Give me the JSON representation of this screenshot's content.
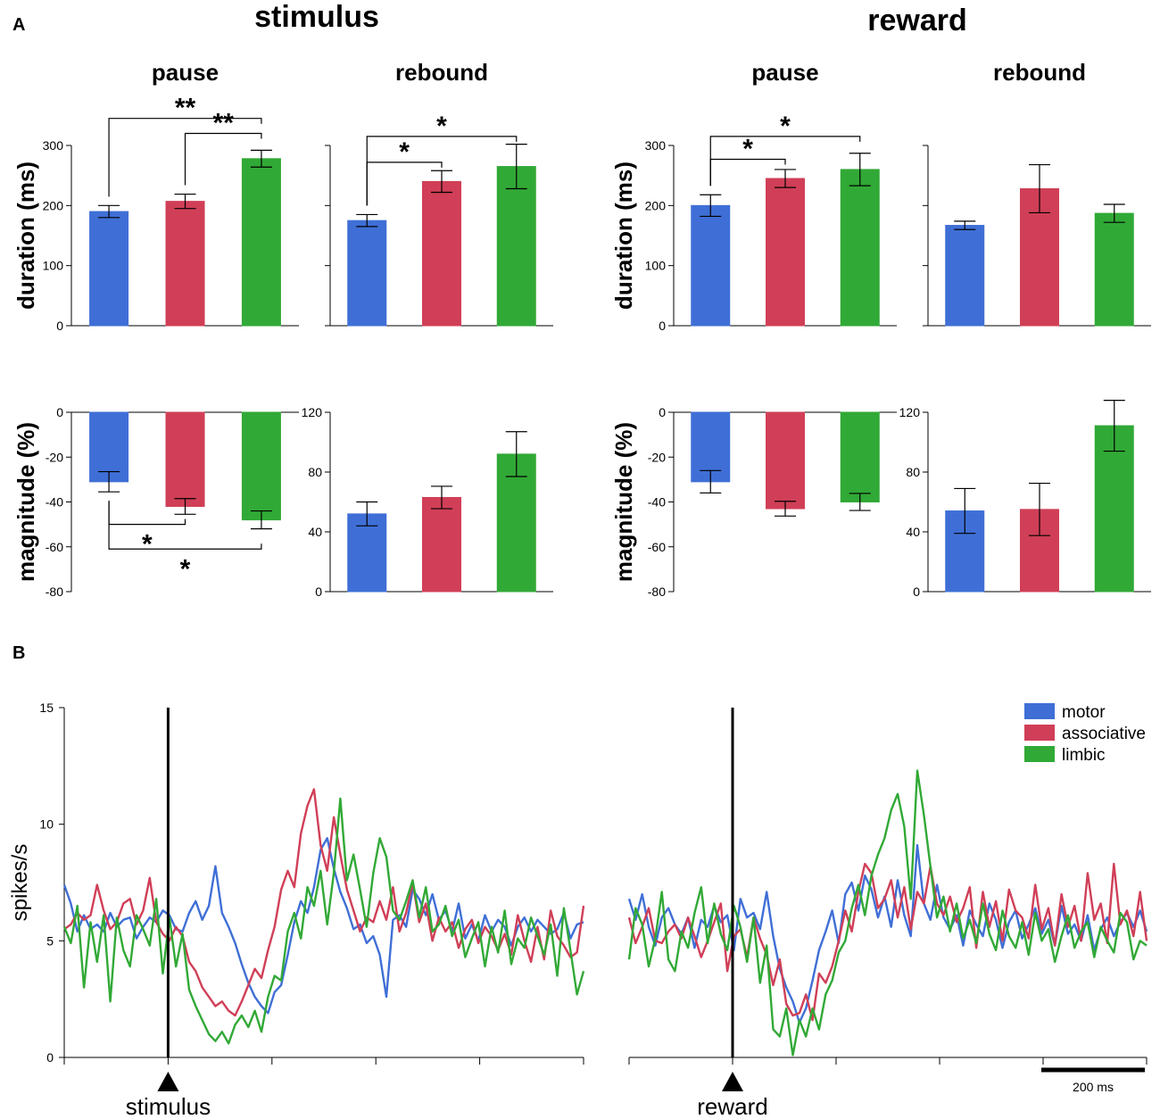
{
  "panel_labels": {
    "a": "A",
    "b": "B"
  },
  "section_titles": {
    "stimulus": "stimulus",
    "reward": "reward"
  },
  "colors": {
    "motor": "#3f6fd6",
    "associative": "#d03f57",
    "limbic": "#31a936",
    "axis": "#000000"
  },
  "chart_data": [
    {
      "id": "stim-pause-duration",
      "type": "bar",
      "title": "pause",
      "ylabel": "duration (ms)",
      "categories": [
        "motor",
        "associative",
        "limbic"
      ],
      "values": [
        190,
        207,
        278
      ],
      "errors": [
        10,
        12,
        14
      ],
      "ylim": [
        0,
        300
      ],
      "yticks": [
        0,
        100,
        200,
        300
      ],
      "ytick_labels": [
        "0",
        "100",
        "200",
        "300"
      ],
      "significance": [
        {
          "from": 0,
          "to": 2,
          "label": "**",
          "y": 345
        },
        {
          "from": 1,
          "to": 2,
          "label": "**",
          "y": 320
        }
      ]
    },
    {
      "id": "stim-rebound-duration",
      "type": "bar",
      "title": "rebound",
      "ylabel": "",
      "categories": [
        "motor",
        "associative",
        "limbic"
      ],
      "values": [
        175,
        240,
        265
      ],
      "errors": [
        10,
        18,
        37
      ],
      "ylim": [
        0,
        300
      ],
      "yticks": [
        0,
        100,
        200,
        300
      ],
      "ytick_labels": [],
      "significance": [
        {
          "from": 0,
          "to": 2,
          "label": "*",
          "y": 315
        },
        {
          "from": 0,
          "to": 1,
          "label": "*",
          "y": 272
        }
      ]
    },
    {
      "id": "reward-pause-duration",
      "type": "bar",
      "title": "pause",
      "ylabel": "duration (ms)",
      "categories": [
        "motor",
        "associative",
        "limbic"
      ],
      "values": [
        200,
        245,
        260
      ],
      "errors": [
        18,
        15,
        27
      ],
      "ylim": [
        0,
        300
      ],
      "yticks": [
        0,
        100,
        200,
        300
      ],
      "ytick_labels": [
        "0",
        "100",
        "200",
        "300"
      ],
      "significance": [
        {
          "from": 0,
          "to": 2,
          "label": "*",
          "y": 315
        },
        {
          "from": 0,
          "to": 1,
          "label": "*",
          "y": 277
        }
      ]
    },
    {
      "id": "reward-rebound-duration",
      "type": "bar",
      "title": "rebound",
      "ylabel": "",
      "categories": [
        "motor",
        "associative",
        "limbic"
      ],
      "values": [
        167,
        228,
        187
      ],
      "errors": [
        7,
        40,
        15
      ],
      "ylim": [
        0,
        300
      ],
      "yticks": [
        0,
        100,
        200,
        300
      ],
      "ytick_labels": [],
      "significance": []
    },
    {
      "id": "stim-pause-magnitude",
      "type": "bar",
      "title": "",
      "ylabel": "magnitude (%)",
      "categories": [
        "motor",
        "associative",
        "limbic"
      ],
      "values": [
        -31,
        -42,
        -48
      ],
      "errors": [
        4.5,
        3.5,
        4
      ],
      "ylim": [
        -80,
        0
      ],
      "yticks": [
        0,
        -20,
        -40,
        -60,
        -80
      ],
      "ytick_labels": [
        "0",
        "-20",
        "-40",
        "-60",
        "-80"
      ],
      "significance": [
        {
          "from": 0,
          "to": 1,
          "label": "*",
          "y": -50,
          "below": true
        },
        {
          "from": 0,
          "to": 2,
          "label": "*",
          "y": -61,
          "below": true
        }
      ]
    },
    {
      "id": "stim-rebound-magnitude",
      "type": "bar",
      "title": "",
      "ylabel": "",
      "categories": [
        "motor",
        "associative",
        "limbic"
      ],
      "values": [
        52,
        63,
        92
      ],
      "errors": [
        8,
        7.5,
        15
      ],
      "ylim": [
        0,
        120
      ],
      "yticks": [
        0,
        40,
        80,
        120
      ],
      "ytick_labels": [
        "0",
        "40",
        "80",
        "120"
      ],
      "significance": []
    },
    {
      "id": "reward-pause-magnitude",
      "type": "bar",
      "title": "",
      "ylabel": "magnitude (%)",
      "categories": [
        "motor",
        "associative",
        "limbic"
      ],
      "values": [
        -31,
        -43,
        -40
      ],
      "errors": [
        5,
        3.3,
        3.8
      ],
      "ylim": [
        -80,
        0
      ],
      "yticks": [
        0,
        -20,
        -40,
        -60,
        -80
      ],
      "ytick_labels": [
        "0",
        "-20",
        "-40",
        "-60",
        "-80"
      ],
      "significance": []
    },
    {
      "id": "reward-rebound-magnitude",
      "type": "bar",
      "title": "",
      "ylabel": "",
      "categories": [
        "motor",
        "associative",
        "limbic"
      ],
      "values": [
        54,
        55,
        111
      ],
      "errors": [
        15,
        17.5,
        17
      ],
      "ylim": [
        0,
        120
      ],
      "yticks": [
        0,
        40,
        80,
        120
      ],
      "ytick_labels": [
        "0",
        "40",
        "80",
        "120"
      ],
      "significance": []
    },
    {
      "id": "psth-stimulus",
      "type": "line",
      "ylabel": "spikes/s",
      "ylim": [
        0,
        15
      ],
      "yticks": [
        0,
        5,
        10,
        15
      ],
      "ytick_labels": [
        "0",
        "5",
        "10",
        "15"
      ],
      "xlim": [
        -200,
        800
      ],
      "event_time": 0,
      "event_label": "stimulus",
      "series": [
        {
          "name": "motor",
          "values": [
            7.4,
            6.6,
            5.4,
            6.1,
            5.5,
            5.7,
            5.4,
            6.2,
            5.6,
            5.9,
            6.0,
            5.1,
            5.6,
            6.0,
            5.8,
            6.3,
            6.1,
            5.5,
            5.4,
            6.2,
            6.7,
            5.9,
            6.5,
            8.2,
            6.2,
            5.6,
            4.9,
            4.0,
            3.2,
            2.6,
            2.2,
            1.9,
            2.8,
            3.1,
            4.4,
            5.8,
            6.7,
            6.2,
            7.3,
            8.9,
            9.4,
            8.1,
            7.1,
            6.4,
            5.5,
            5.7,
            4.9,
            5.2,
            4.4,
            2.6,
            5.9,
            6.1,
            5.6,
            7.2,
            6.8,
            6.1,
            7.0,
            5.9,
            6.3,
            5.4,
            6.6,
            5.1,
            5.7,
            5.0,
            6.1,
            5.4,
            5.9,
            5.6,
            4.8,
            5.6,
            6.0,
            5.4,
            5.9,
            5.6,
            5.3,
            5.5,
            6.2,
            5.1,
            5.7,
            5.8
          ]
        },
        {
          "name": "associative",
          "values": [
            5.5,
            5.7,
            6.2,
            5.9,
            6.1,
            7.4,
            6.3,
            5.5,
            5.8,
            6.6,
            6.8,
            5.7,
            6.3,
            7.7,
            5.8,
            5.3,
            5.0,
            5.6,
            5.2,
            4.1,
            3.7,
            3.0,
            2.6,
            2.2,
            2.4,
            2.0,
            1.8,
            2.4,
            3.1,
            3.8,
            3.4,
            4.6,
            5.6,
            7.2,
            8.0,
            7.3,
            9.6,
            10.8,
            11.5,
            9.1,
            8.0,
            10.3,
            8.7,
            7.2,
            6.3,
            5.4,
            6.0,
            5.8,
            6.7,
            5.9,
            7.3,
            5.4,
            6.2,
            7.5,
            5.8,
            6.6,
            5.0,
            6.0,
            5.4,
            5.8,
            4.7,
            5.5,
            5.9,
            4.9,
            5.6,
            5.2,
            4.6,
            5.3,
            4.4,
            6.1,
            5.0,
            4.1,
            5.6,
            4.2,
            6.3,
            5.2,
            4.8,
            4.3,
            4.5,
            6.5
          ]
        },
        {
          "name": "limbic",
          "values": [
            5.6,
            4.9,
            6.5,
            3.0,
            5.8,
            4.1,
            6.1,
            2.4,
            6.0,
            4.6,
            3.9,
            6.1,
            5.5,
            4.8,
            6.8,
            3.6,
            6.0,
            3.9,
            5.3,
            2.9,
            2.2,
            1.6,
            1.0,
            0.7,
            1.1,
            0.6,
            1.4,
            1.8,
            1.3,
            2.0,
            1.1,
            2.6,
            3.5,
            3.3,
            5.4,
            6.2,
            5.1,
            7.3,
            6.5,
            8.0,
            5.7,
            7.9,
            11.1,
            7.6,
            8.7,
            7.2,
            5.6,
            7.9,
            9.4,
            8.6,
            6.3,
            5.9,
            6.7,
            7.6,
            6.0,
            7.3,
            5.4,
            5.7,
            6.5,
            5.2,
            5.9,
            4.3,
            5.1,
            5.8,
            3.9,
            5.6,
            4.5,
            6.3,
            4.0,
            5.1,
            4.7,
            6.0,
            5.2,
            4.4,
            5.7,
            3.5,
            6.4,
            4.6,
            2.7,
            3.7
          ]
        }
      ]
    },
    {
      "id": "psth-reward",
      "type": "line",
      "ylabel": "",
      "ylim": [
        0,
        15
      ],
      "yticks": [
        0,
        5,
        10,
        15
      ],
      "ytick_labels": [],
      "xlim": [
        -200,
        800
      ],
      "event_time": 0,
      "event_label": "reward",
      "scalebar_label": "200 ms",
      "scalebar_ms": 200,
      "series": [
        {
          "name": "motor",
          "values": [
            6.8,
            5.9,
            7.0,
            5.6,
            4.8,
            6.0,
            6.4,
            5.7,
            5.3,
            6.0,
            4.7,
            5.9,
            5.6,
            6.5,
            5.8,
            6.1,
            4.6,
            6.8,
            6.0,
            6.2,
            5.5,
            7.1,
            5.2,
            3.8,
            3.0,
            2.4,
            1.5,
            2.1,
            3.3,
            4.6,
            5.4,
            6.3,
            4.9,
            7.0,
            7.5,
            6.3,
            7.8,
            7.2,
            6.0,
            6.9,
            5.6,
            7.6,
            6.1,
            5.2,
            9.1,
            6.6,
            5.9,
            7.4,
            6.0,
            5.5,
            6.1,
            4.8,
            6.3,
            5.7,
            5.2,
            6.6,
            5.9,
            4.7,
            5.8,
            6.3,
            5.1,
            5.7,
            6.4,
            5.3,
            5.9,
            4.8,
            6.5,
            5.3,
            5.7,
            5.0,
            6.1,
            4.6,
            5.5,
            6.0,
            5.2,
            5.8,
            6.2,
            5.6,
            6.3,
            5.4
          ]
        },
        {
          "name": "associative",
          "values": [
            6.0,
            4.9,
            5.6,
            6.4,
            5.0,
            4.9,
            5.4,
            5.7,
            5.1,
            6.0,
            5.2,
            4.3,
            5.0,
            5.8,
            6.6,
            3.7,
            5.2,
            5.5,
            4.3,
            6.0,
            5.1,
            4.4,
            3.1,
            4.2,
            2.3,
            1.8,
            1.9,
            2.7,
            1.6,
            3.6,
            3.2,
            3.9,
            5.0,
            6.3,
            5.4,
            7.1,
            8.3,
            7.9,
            6.4,
            6.8,
            7.6,
            6.0,
            7.3,
            5.5,
            7.1,
            6.6,
            8.2,
            6.6,
            6.1,
            6.9,
            5.8,
            6.4,
            7.3,
            4.7,
            7.1,
            5.6,
            6.7,
            5.0,
            7.2,
            6.3,
            6.0,
            5.1,
            7.4,
            5.5,
            6.4,
            4.8,
            7.0,
            5.6,
            6.5,
            5.0,
            7.9,
            5.9,
            6.6,
            4.9,
            8.3,
            5.7,
            6.3,
            5.2,
            7.1,
            5.0
          ]
        },
        {
          "name": "limbic",
          "values": [
            4.2,
            6.4,
            5.7,
            3.9,
            5.1,
            7.1,
            4.2,
            3.7,
            5.4,
            4.7,
            6.2,
            7.3,
            4.9,
            6.6,
            5.3,
            4.6,
            6.5,
            5.6,
            4.1,
            6.0,
            3.2,
            4.8,
            1.2,
            0.9,
            2.1,
            0.1,
            1.6,
            0.9,
            2.1,
            1.2,
            2.7,
            3.3,
            4.5,
            5.0,
            6.4,
            7.4,
            6.1,
            7.8,
            8.7,
            9.4,
            10.6,
            11.3,
            9.9,
            6.8,
            12.3,
            10.4,
            8.2,
            6.0,
            6.9,
            5.4,
            6.6,
            5.1,
            5.9,
            4.9,
            6.6,
            5.3,
            4.6,
            6.3,
            5.2,
            4.7,
            5.8,
            4.4,
            6.2,
            5.0,
            5.5,
            4.1,
            5.2,
            6.1,
            4.7,
            5.4,
            5.8,
            4.3,
            5.6,
            5.0,
            4.5,
            6.2,
            5.8,
            4.2,
            5.0,
            4.8
          ]
        }
      ]
    }
  ],
  "legend": [
    {
      "name": "motor",
      "label": "motor"
    },
    {
      "name": "associative",
      "label": "associative"
    },
    {
      "name": "limbic",
      "label": "limbic"
    }
  ]
}
